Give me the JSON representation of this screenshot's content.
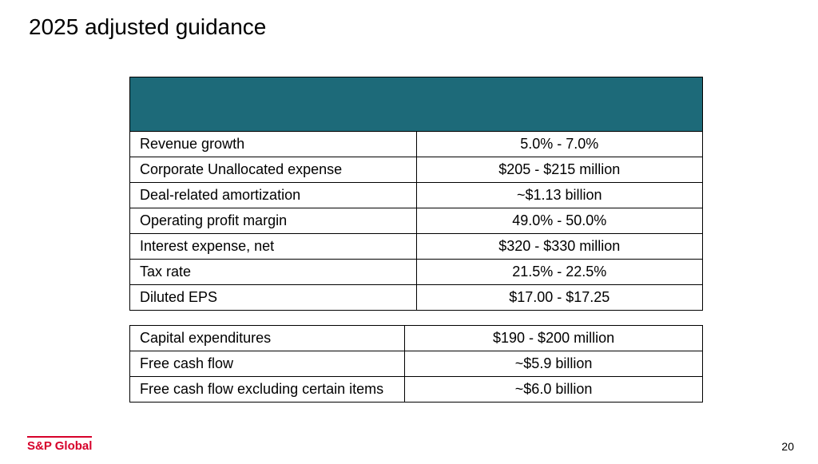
{
  "title": "2025 adjusted guidance",
  "header_band_color": "#1d6a79",
  "table1": {
    "rows": [
      {
        "label": "Revenue growth",
        "value": "5.0% - 7.0%"
      },
      {
        "label": "Corporate Unallocated expense",
        "value": "$205 - $215 million"
      },
      {
        "label": "Deal-related amortization",
        "value": "~$1.13 billion"
      },
      {
        "label": "Operating profit margin",
        "value": "49.0% - 50.0%"
      },
      {
        "label": "Interest expense, net",
        "value": "$320 - $330 million"
      },
      {
        "label": "Tax rate",
        "value": "21.5% - 22.5%"
      },
      {
        "label": "Diluted EPS",
        "value": "$17.00 - $17.25"
      }
    ]
  },
  "table2": {
    "rows": [
      {
        "label": "Capital expenditures",
        "value": "$190 - $200 million"
      },
      {
        "label": "Free cash flow",
        "value": "~$5.9 billion"
      },
      {
        "label": "Free cash flow excluding certain items",
        "value": "~$6.0 billion"
      }
    ]
  },
  "footer": {
    "brand": "S&P Global",
    "brand_color": "#d6002a",
    "page_number": "20"
  },
  "styling": {
    "title_fontsize": 28,
    "cell_fontsize": 18,
    "border_color": "#000000",
    "background_color": "#ffffff",
    "label_col_width_pct": 48,
    "value_col_width_pct": 52
  }
}
